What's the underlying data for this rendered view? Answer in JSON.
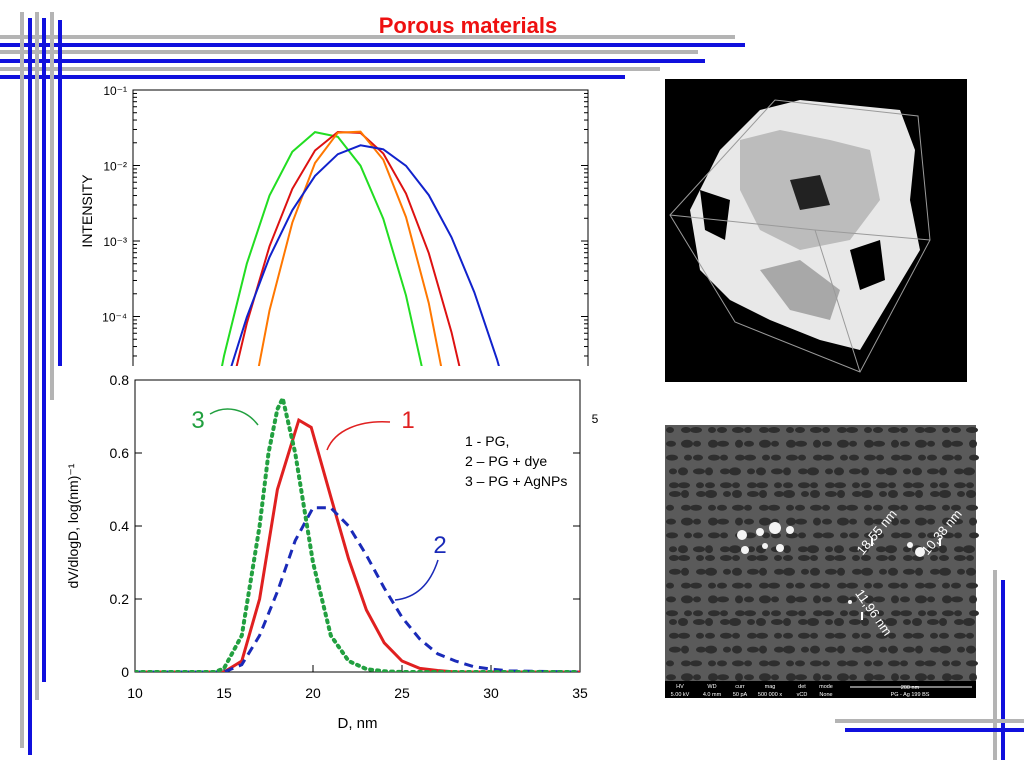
{
  "title": "Porous materials",
  "chart_data": [
    {
      "type": "line",
      "y_label": "INTENSITY",
      "log_y": true,
      "categories": [
        null,
        null,
        null,
        null,
        null,
        null,
        null,
        null,
        null,
        null,
        null,
        null,
        null,
        null,
        null,
        null,
        null,
        null,
        null,
        null,
        null
      ],
      "ylim": [
        1e-05,
        0.1
      ],
      "yticks": [
        {
          "value": 0.1,
          "label": "10⁻¹"
        },
        {
          "value": 0.01,
          "label": "10⁻²"
        },
        {
          "value": 0.001,
          "label": "10⁻³"
        },
        {
          "value": 0.0001,
          "label": "10⁻⁴"
        }
      ],
      "annotation": "5",
      "series": [
        {
          "color": "#22dd22",
          "values": [
            null,
            null,
            null,
            9e-07,
            3e-05,
            0.0005,
            0.004,
            0.0152,
            0.0277,
            0.024,
            0.00995,
            0.00197,
            0.00019,
            8.3e-06,
            null,
            null,
            null,
            null,
            null,
            null,
            null
          ]
        },
        {
          "color": "#dd1111",
          "values": [
            null,
            null,
            null,
            null,
            4.3e-06,
            8.1e-05,
            0.00085,
            0.0049,
            0.0158,
            0.0278,
            0.027,
            0.0144,
            0.00426,
            0.00069,
            6.2e-05,
            3.1e-06,
            null,
            null,
            null,
            null,
            null
          ]
        },
        {
          "color": "#ff7700",
          "values": [
            null,
            null,
            null,
            null,
            null,
            3.2e-06,
            0.00012,
            0.00175,
            0.0108,
            0.0272,
            0.0281,
            0.0119,
            0.00207,
            0.00015,
            4.3e-06,
            null,
            null,
            null,
            null,
            null,
            null
          ]
        },
        {
          "color": "#1122cc",
          "values": [
            null,
            null,
            null,
            7.9e-07,
            1.07e-05,
            9.8e-05,
            0.00061,
            0.00255,
            0.00729,
            0.0141,
            0.0185,
            0.0164,
            0.0099,
            0.00405,
            0.00112,
            0.00021,
            2.7e-05,
            2.3e-06,
            null,
            null,
            null
          ]
        }
      ]
    },
    {
      "type": "line",
      "x_label": "D, nm",
      "y_label": "dV/dlogD, log(nm)⁻¹",
      "xlim": [
        10,
        35
      ],
      "ylim": [
        0,
        0.8
      ],
      "xticks": [
        10,
        15,
        20,
        25,
        30,
        35
      ],
      "yticks": [
        0,
        0.2,
        0.4,
        0.6,
        0.8
      ],
      "notes": [
        "1 - PG,",
        "2 – PG + dye",
        "3 – PG + AgNPs"
      ],
      "series": [
        {
          "name": "1",
          "color": "#e02020",
          "dash": "solid",
          "x": [
            10,
            15,
            16,
            17,
            18,
            19.2,
            19.9,
            21,
            22,
            23,
            24,
            25,
            26,
            27,
            28,
            35
          ],
          "values": [
            0,
            0,
            0.03,
            0.2,
            0.5,
            0.69,
            0.67,
            0.48,
            0.31,
            0.17,
            0.08,
            0.03,
            0.01,
            0.004,
            0,
            0
          ]
        },
        {
          "name": "2",
          "color": "#1a2ab8",
          "dash": "dashed",
          "x": [
            10,
            15,
            16,
            17,
            18,
            19,
            20,
            21,
            22,
            23,
            24,
            25,
            26,
            27,
            28,
            29,
            30,
            31,
            35
          ],
          "values": [
            0,
            0,
            0.02,
            0.1,
            0.22,
            0.36,
            0.45,
            0.45,
            0.4,
            0.32,
            0.23,
            0.15,
            0.09,
            0.05,
            0.03,
            0.015,
            0.008,
            0.003,
            0
          ]
        },
        {
          "name": "3",
          "color": "#22a040",
          "dash": "dotted",
          "x": [
            10,
            14.5,
            15,
            16,
            17,
            17.5,
            18,
            18.3,
            19,
            19.5,
            20,
            21,
            22,
            23,
            24,
            25,
            35
          ],
          "values": [
            0,
            0,
            0.01,
            0.1,
            0.4,
            0.6,
            0.72,
            0.75,
            0.6,
            0.45,
            0.3,
            0.1,
            0.03,
            0.008,
            0.002,
            0,
            0
          ]
        }
      ]
    }
  ],
  "sem": {
    "measurements": [
      "18,55 nm",
      "10,38 nm",
      "11,96 nm"
    ],
    "info": [
      [
        "HV",
        "5.00 kV"
      ],
      [
        "WD",
        "4.0 mm"
      ],
      [
        "curr",
        "50 pA"
      ],
      [
        "mag",
        "500 000 x"
      ],
      [
        "det",
        "vCD"
      ],
      [
        "mode",
        "None"
      ]
    ],
    "scale": "200 nm",
    "caption": "PG - Ag 199 BS"
  }
}
